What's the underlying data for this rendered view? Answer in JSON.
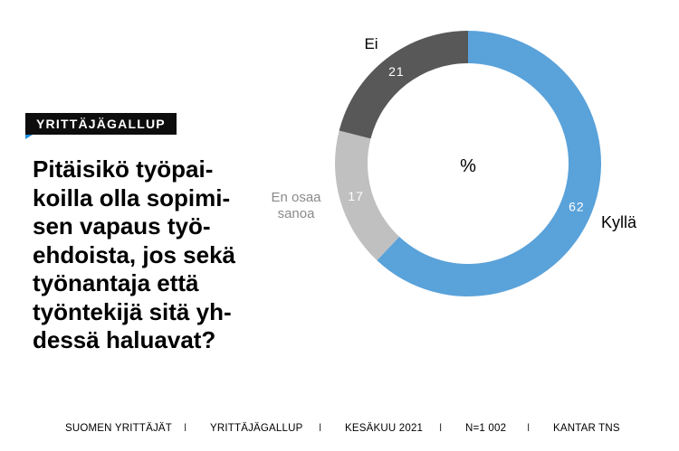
{
  "badge": "YRITTÄJÄGALLUP",
  "question_lines": [
    "Pitäisikö työpai-",
    "koilla olla sopimi-",
    "sen vapaus työ-",
    "ehdoista, jos sekä",
    "työnantaja että",
    "työntekijä sitä yh-",
    "dessä haluavat?"
  ],
  "chart_data": {
    "type": "pie",
    "variant": "donut",
    "center_label": "%",
    "slices": [
      {
        "label": "Kyllä",
        "value": 62,
        "color": "#5aa2da"
      },
      {
        "label": "En osaa sanoa",
        "label_lines": [
          "En osaa",
          "sanoa"
        ],
        "value": 17,
        "color": "#c0c0c0"
      },
      {
        "label": "Ei",
        "value": 21,
        "color": "#585858"
      }
    ]
  },
  "footer": {
    "items": [
      "SUOMEN YRITTÄJÄT",
      "YRITTÄJÄGALLUP",
      "KESÄKUU 2021",
      "N=1 002",
      "KANTAR TNS"
    ],
    "separator": "I"
  }
}
